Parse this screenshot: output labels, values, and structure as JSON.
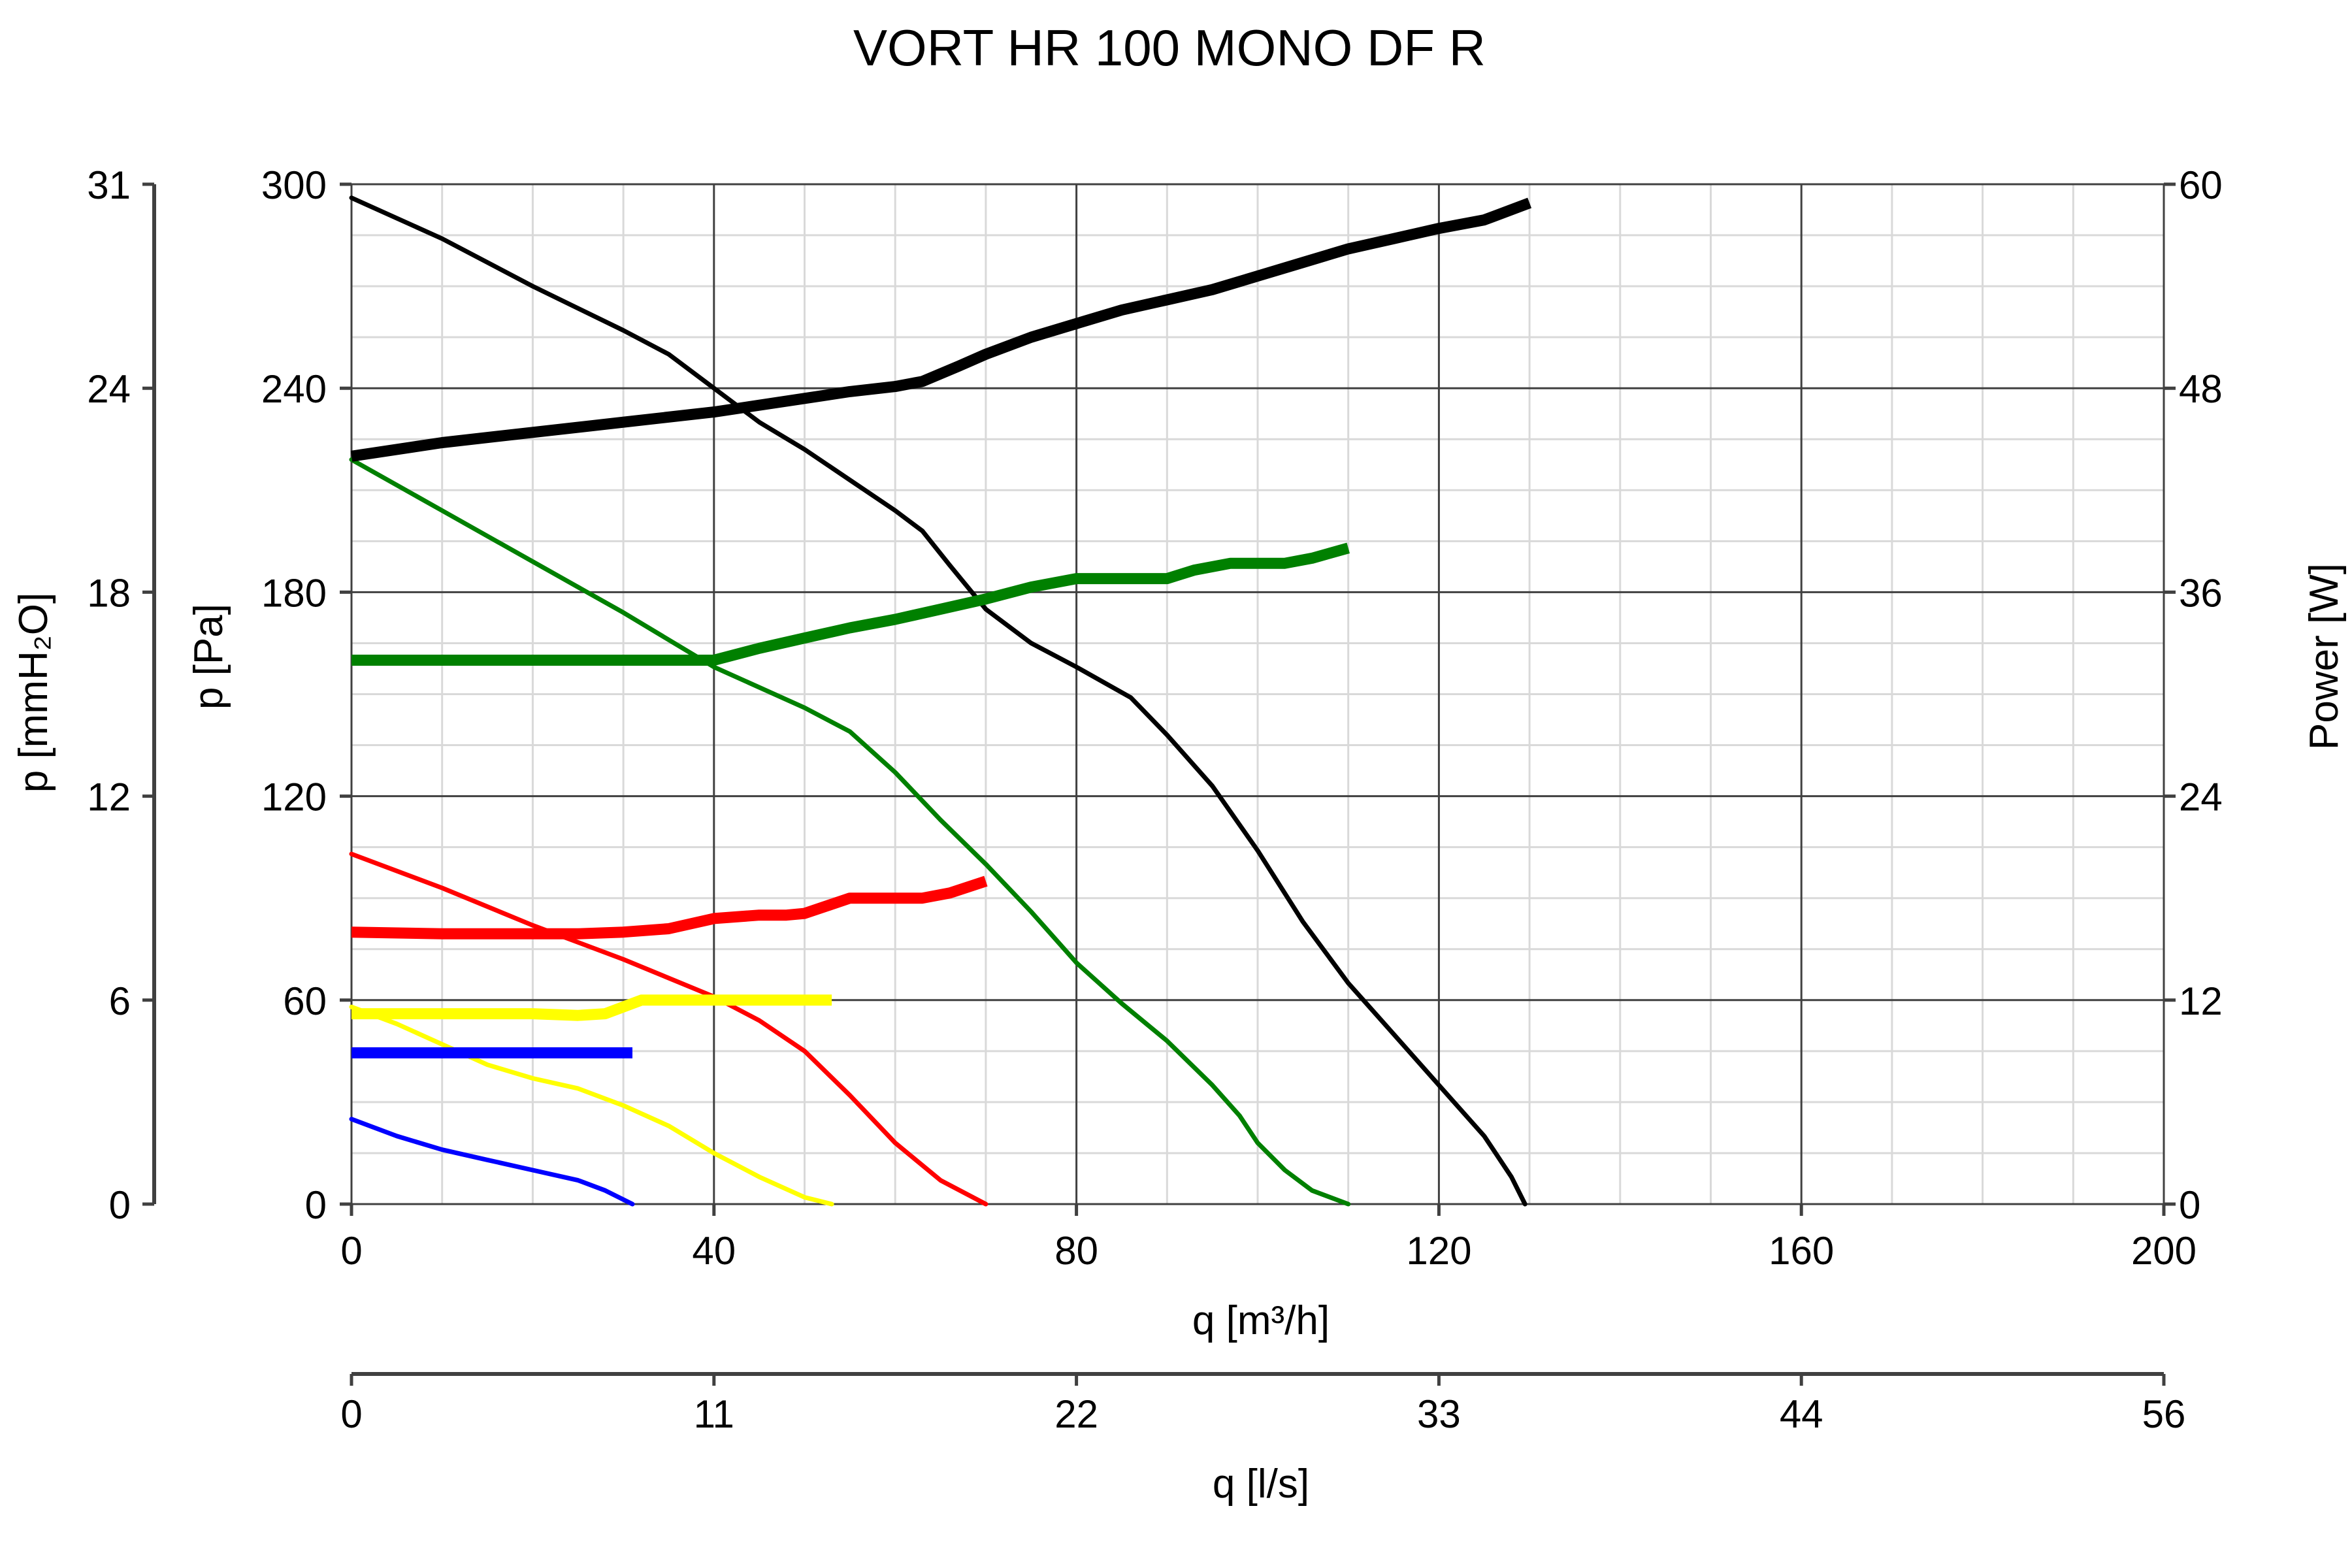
{
  "chart_data": {
    "type": "line",
    "title": "VORT HR 100 MONO DF R",
    "xlabel": "q [m³/h]",
    "xlabel2": "q [l/s]",
    "ylabel": "p [Pa]",
    "ylabel2": "p [mmH₂O]",
    "ylabel_right": "Power [W]",
    "xlim": [
      0,
      200
    ],
    "ylim": [
      0,
      300
    ],
    "ylim_right": [
      0,
      60
    ],
    "grid": true,
    "x_ticks": [
      "0",
      "40",
      "80",
      "120",
      "160",
      "200"
    ],
    "x2_ticks": [
      "0",
      "11",
      "22",
      "33",
      "44",
      "56"
    ],
    "y_ticks": [
      "0",
      "60",
      "120",
      "180",
      "240",
      "300"
    ],
    "y2_ticks": [
      "0",
      "6",
      "12",
      "18",
      "24",
      "31"
    ],
    "y_right_ticks": [
      "0",
      "12",
      "24",
      "36",
      "48",
      "60"
    ],
    "pressure_series": [
      {
        "color": "#000000",
        "x": [
          0,
          10,
          20,
          30,
          35,
          40,
          45,
          50,
          55,
          60,
          63,
          66,
          70,
          75,
          80,
          86,
          90,
          95,
          100,
          105,
          110,
          115,
          120,
          125,
          128,
          129.5
        ],
        "y": [
          296,
          284,
          270,
          257,
          250,
          240,
          230,
          222,
          213,
          204,
          198,
          188,
          175,
          165,
          158,
          149,
          138,
          123,
          104,
          83,
          65,
          50,
          35,
          20,
          8,
          0
        ]
      },
      {
        "color": "#008000",
        "x": [
          0,
          10,
          20,
          30,
          40,
          50,
          55,
          60,
          65,
          70,
          75,
          80,
          85,
          90,
          95,
          98,
          100,
          103,
          106,
          110
        ],
        "y": [
          219,
          204,
          189,
          174,
          158,
          146,
          139,
          127,
          113,
          100,
          86,
          71,
          59,
          48,
          35,
          26,
          18,
          10,
          4,
          0
        ]
      },
      {
        "color": "#FF0000",
        "x": [
          0,
          10,
          20,
          30,
          40,
          45,
          50,
          55,
          60,
          65,
          70
        ],
        "y": [
          103,
          93,
          82,
          72,
          61,
          54,
          45,
          32,
          18,
          7,
          0
        ]
      },
      {
        "color": "#FFFF00",
        "x": [
          0,
          5,
          10,
          15,
          20,
          25,
          30,
          35,
          40,
          45,
          50,
          53
        ],
        "y": [
          58,
          53,
          47,
          41,
          37,
          34,
          29,
          23,
          15,
          8,
          2,
          0
        ]
      },
      {
        "color": "#0000FF",
        "x": [
          0,
          5,
          10,
          15,
          20,
          25,
          28,
          31
        ],
        "y": [
          25,
          20,
          16,
          13,
          10,
          7,
          4,
          0
        ]
      }
    ],
    "power_series": [
      {
        "color": "#000000",
        "x": [
          0,
          10,
          20,
          30,
          40,
          50,
          55,
          60,
          63,
          67,
          70,
          75,
          80,
          85,
          90,
          95,
          100,
          105,
          110,
          115,
          120,
          125,
          130
        ],
        "y": [
          44,
          44.8,
          45.4,
          46,
          46.6,
          47.4,
          47.8,
          48.1,
          48.4,
          49.3,
          50,
          51,
          51.8,
          52.6,
          53.2,
          53.8,
          54.6,
          55.4,
          56.2,
          56.8,
          57.4,
          57.9,
          58.9
        ]
      },
      {
        "color": "#008000",
        "x": [
          0,
          10,
          20,
          30,
          35,
          40,
          45,
          50,
          55,
          60,
          65,
          70,
          75,
          80,
          85,
          90,
          93,
          97,
          100,
          103,
          106,
          110
        ],
        "y": [
          32,
          32,
          32,
          32,
          32,
          32,
          32.7,
          33.3,
          33.9,
          34.4,
          35,
          35.6,
          36.3,
          36.8,
          36.8,
          36.8,
          37.3,
          37.7,
          37.7,
          37.7,
          38,
          38.6
        ]
      },
      {
        "color": "#FF0000",
        "x": [
          0,
          10,
          20,
          25,
          30,
          35,
          40,
          45,
          48,
          50,
          55,
          60,
          63,
          66,
          70
        ],
        "y": [
          16,
          15.9,
          15.9,
          15.9,
          16,
          16.2,
          16.8,
          17,
          17,
          17.1,
          18,
          18,
          18,
          18.3,
          19
        ]
      },
      {
        "color": "#FFFF00",
        "x": [
          0,
          10,
          20,
          25,
          28,
          32,
          40,
          50,
          53
        ],
        "y": [
          11.2,
          11.2,
          11.2,
          11.1,
          11.2,
          12,
          12,
          12,
          12
        ]
      },
      {
        "color": "#0000FF",
        "x": [
          0,
          10,
          20,
          31
        ],
        "y": [
          8.9,
          8.9,
          8.9,
          8.9
        ]
      }
    ]
  }
}
